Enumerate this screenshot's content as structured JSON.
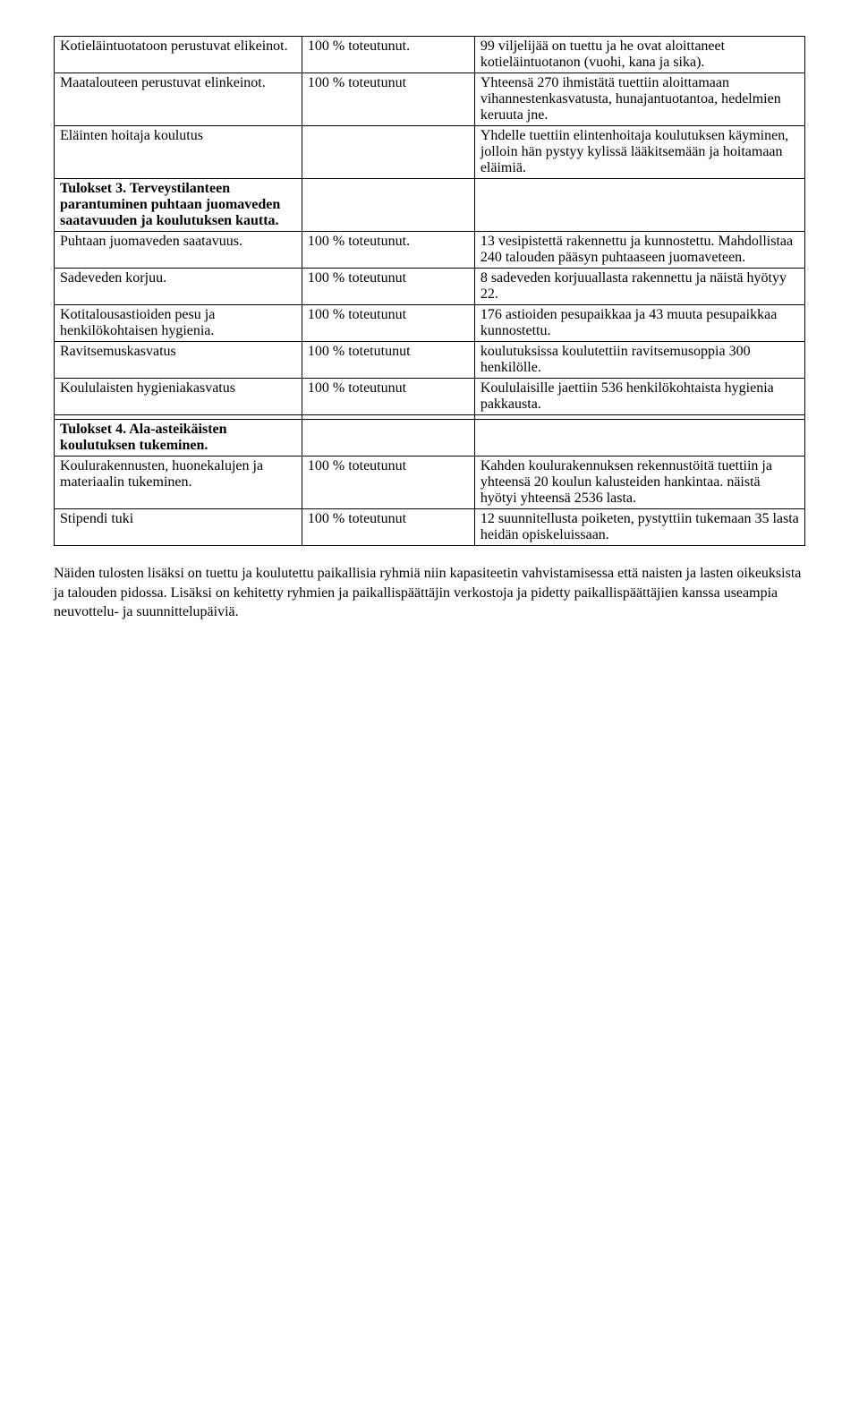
{
  "rows": [
    {
      "c1": "Kotieläintuotatoon perustuvat elikeinot.",
      "c2": "100 % toteutunut.",
      "c3": "99 viljelijää on tuettu ja he ovat aloittaneet kotieläintuotanon (vuohi, kana ja sika)."
    },
    {
      "c1": "Maatalouteen perustuvat elinkeinot.",
      "c2": "100 % toteutunut",
      "c3": "Yhteensä 270 ihmistätä tuettiin aloittamaan vihannestenkasvatusta, hunajantuotantoa, hedelmien keruuta jne."
    },
    {
      "c1": "Eläinten hoitaja koulutus",
      "c2": "",
      "c3": "Yhdelle tuettiin elintenhoitaja koulutuksen käyminen, jolloin hän pystyy kylissä lääkitsemään ja hoitamaan eläimiä."
    },
    {
      "c1": "Tulokset 3. Terveystilanteen parantuminen puhtaan juomaveden saatavuuden ja koulutuksen kautta.",
      "c1bold": true,
      "c2": "",
      "c3": ""
    },
    {
      "c1": "Puhtaan juomaveden saatavuus.",
      "c2": "100 % toteutunut.",
      "c3": "13 vesipistettä rakennettu ja kunnostettu. Mahdollistaa 240 talouden pääsyn puhtaaseen juomaveteen."
    },
    {
      "c1": "Sadeveden korjuu.",
      "c2": "100 % toteutunut",
      "c3": "8 sadeveden korjuuallasta rakennettu ja näistä hyötyy 22."
    },
    {
      "c1": "Kotitalousastioiden pesu ja henkilökohtaisen hygienia.",
      "c2": "100 % toteutunut",
      "c3": "176 astioiden pesupaikkaa ja 43 muuta pesupaikkaa kunnostettu."
    },
    {
      "c1": "Ravitsemuskasvatus",
      "c2": "100 % totetutunut",
      "c3": "koulutuksissa koulutettiin ravitsemusoppia 300 henkilölle."
    },
    {
      "c1": "Koululaisten hygieniakasvatus",
      "c2": "100 % toteutunut",
      "c3": "Koululaisille jaettiin 536 henkilökohtaista hygienia pakkausta."
    },
    {
      "c1": "",
      "c2": "",
      "c3": ""
    },
    {
      "c1": "Tulokset 4. Ala-asteikäisten koulutuksen tukeminen.",
      "c1bold": true,
      "c2": "",
      "c3": ""
    },
    {
      "c1": "Koulurakennusten, huonekalujen ja materiaalin tukeminen.",
      "c2": "100 % toteutunut",
      "c3": "Kahden koulurakennuksen rekennustöitä tuettiin ja yhteensä 20 koulun kalusteiden hankintaa. näistä hyötyi yhteensä 2536 lasta."
    },
    {
      "c1": "Stipendi tuki",
      "c2": "100 % toteutunut",
      "c3": "12 suunnitellusta poiketen, pystyttiin tukemaan 35 lasta heidän opiskeluissaan."
    }
  ],
  "footer": "Näiden tulosten lisäksi on tuettu ja koulutettu paikallisia ryhmiä niin kapasiteetin vahvistamisessa että naisten ja lasten oikeuksista ja talouden pidossa. Lisäksi on kehitetty ryhmien ja paikallispäättäjin verkostoja ja pidetty paikallispäättäjien kanssa useampia neuvottelu- ja suunnittelupäiviä."
}
